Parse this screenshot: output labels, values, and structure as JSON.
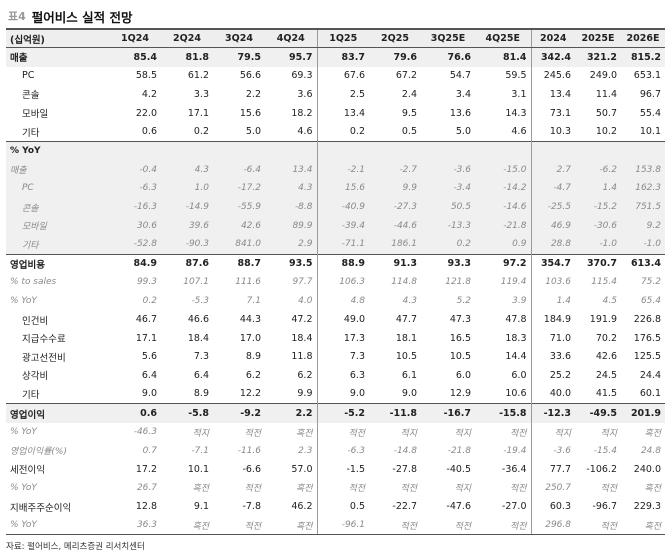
{
  "title": {
    "tag": "표4",
    "text": "펄어비스 실적 전망"
  },
  "header": {
    "unit": "(십억원)",
    "periods": [
      "1Q24",
      "2Q24",
      "3Q24",
      "4Q24",
      "1Q25",
      "2Q25",
      "3Q25E",
      "4Q25E",
      "2024",
      "2025E",
      "2026E"
    ]
  },
  "rows": [
    {
      "label": "매출",
      "style": "sec shade",
      "values": [
        "85.4",
        "81.8",
        "79.5",
        "95.7",
        "83.7",
        "79.6",
        "76.6",
        "81.4",
        "342.4",
        "321.2",
        "815.2"
      ]
    },
    {
      "label": "PC",
      "style": "sub",
      "values": [
        "58.5",
        "61.2",
        "56.6",
        "69.3",
        "67.6",
        "67.2",
        "54.7",
        "59.5",
        "245.6",
        "249.0",
        "653.1"
      ]
    },
    {
      "label": "콘솔",
      "style": "sub",
      "values": [
        "4.2",
        "3.3",
        "2.2",
        "3.6",
        "2.5",
        "2.4",
        "3.4",
        "3.1",
        "13.4",
        "11.4",
        "96.7"
      ]
    },
    {
      "label": "모바일",
      "style": "sub",
      "values": [
        "22.0",
        "17.1",
        "15.6",
        "18.2",
        "13.4",
        "9.5",
        "13.6",
        "14.3",
        "73.1",
        "50.7",
        "55.4"
      ]
    },
    {
      "label": "기타",
      "style": "sub",
      "values": [
        "0.6",
        "0.2",
        "5.0",
        "4.6",
        "0.2",
        "0.5",
        "5.0",
        "4.6",
        "10.3",
        "10.2",
        "10.1"
      ]
    },
    {
      "label": "% YoY",
      "style": "yoyhdr",
      "values": [
        "",
        "",
        "",
        "",
        "",
        "",
        "",
        "",
        "",
        "",
        ""
      ]
    },
    {
      "label": "매출",
      "style": "ital shade",
      "values": [
        "-0.4",
        "4.3",
        "-6.4",
        "13.4",
        "-2.1",
        "-2.7",
        "-3.6",
        "-15.0",
        "2.7",
        "-6.2",
        "153.8"
      ]
    },
    {
      "label": "PC",
      "style": "ital sub shade",
      "values": [
        "-6.3",
        "1.0",
        "-17.2",
        "4.3",
        "15.6",
        "9.9",
        "-3.4",
        "-14.2",
        "-4.7",
        "1.4",
        "162.3"
      ]
    },
    {
      "label": "콘솔",
      "style": "ital sub shade",
      "values": [
        "-16.3",
        "-14.9",
        "-55.9",
        "-8.8",
        "-40.9",
        "-27.3",
        "50.5",
        "-14.6",
        "-25.5",
        "-15.2",
        "751.5"
      ]
    },
    {
      "label": "모바일",
      "style": "ital sub shade",
      "values": [
        "30.6",
        "39.6",
        "42.6",
        "89.9",
        "-39.4",
        "-44.6",
        "-13.3",
        "-21.8",
        "46.9",
        "-30.6",
        "9.2"
      ]
    },
    {
      "label": "기타",
      "style": "ital sub shade",
      "values": [
        "-52.8",
        "-90.3",
        "841.0",
        "2.9",
        "-71.1",
        "186.1",
        "0.2",
        "0.9",
        "28.8",
        "-1.0",
        "-1.0"
      ]
    },
    {
      "label": "영업비용",
      "style": "sec topline",
      "values": [
        "84.9",
        "87.6",
        "88.7",
        "93.5",
        "88.9",
        "91.3",
        "93.3",
        "97.2",
        "354.7",
        "370.7",
        "613.4"
      ]
    },
    {
      "label": "% to sales",
      "style": "ital",
      "values": [
        "99.3",
        "107.1",
        "111.6",
        "97.7",
        "106.3",
        "114.8",
        "121.8",
        "119.4",
        "103.6",
        "115.4",
        "75.2"
      ]
    },
    {
      "label": "% YoY",
      "style": "ital",
      "values": [
        "0.2",
        "-5.3",
        "7.1",
        "4.0",
        "4.8",
        "4.3",
        "5.2",
        "3.9",
        "1.4",
        "4.5",
        "65.4"
      ]
    },
    {
      "label": "인건비",
      "style": "sub",
      "values": [
        "46.7",
        "46.6",
        "44.3",
        "47.2",
        "49.0",
        "47.7",
        "47.3",
        "47.8",
        "184.9",
        "191.9",
        "226.8"
      ]
    },
    {
      "label": "지급수수료",
      "style": "sub",
      "values": [
        "17.1",
        "18.4",
        "17.0",
        "18.4",
        "17.3",
        "18.1",
        "16.5",
        "18.3",
        "71.0",
        "70.2",
        "176.5"
      ]
    },
    {
      "label": "광고선전비",
      "style": "sub",
      "values": [
        "5.6",
        "7.3",
        "8.9",
        "11.8",
        "7.3",
        "10.5",
        "10.5",
        "14.4",
        "33.6",
        "42.6",
        "125.5"
      ]
    },
    {
      "label": "상각비",
      "style": "sub",
      "values": [
        "6.4",
        "6.4",
        "6.2",
        "6.2",
        "6.3",
        "6.1",
        "6.0",
        "6.0",
        "25.2",
        "24.5",
        "24.4"
      ]
    },
    {
      "label": "기타",
      "style": "sub",
      "values": [
        "9.0",
        "8.9",
        "12.2",
        "9.9",
        "9.0",
        "9.0",
        "12.9",
        "10.6",
        "40.0",
        "41.5",
        "60.1"
      ]
    },
    {
      "label": "영업이익",
      "style": "sec shade topline",
      "values": [
        "0.6",
        "-5.8",
        "-9.2",
        "2.2",
        "-5.2",
        "-11.8",
        "-16.7",
        "-15.8",
        "-12.3",
        "-49.5",
        "201.9"
      ]
    },
    {
      "label": "% YoY",
      "style": "ital",
      "values": [
        "-46.3",
        "적지",
        "적전",
        "흑전",
        "적전",
        "적지",
        "적지",
        "적전",
        "적지",
        "적지",
        "흑전"
      ]
    },
    {
      "label": "영업이익률(%)",
      "style": "ital",
      "values": [
        "0.7",
        "-7.1",
        "-11.6",
        "2.3",
        "-6.3",
        "-14.8",
        "-21.8",
        "-19.4",
        "-3.6",
        "-15.4",
        "24.8"
      ]
    },
    {
      "label": "세전이익",
      "style": "",
      "values": [
        "17.2",
        "10.1",
        "-6.6",
        "57.0",
        "-1.5",
        "-27.8",
        "-40.5",
        "-36.4",
        "77.7",
        "-106.2",
        "240.0"
      ]
    },
    {
      "label": "% YoY",
      "style": "ital",
      "values": [
        "26.7",
        "흑전",
        "적전",
        "흑전",
        "적전",
        "적전",
        "적지",
        "적전",
        "250.7",
        "적전",
        "흑전"
      ]
    },
    {
      "label": "지배주주순이익",
      "style": "",
      "values": [
        "12.8",
        "9.1",
        "-7.8",
        "46.2",
        "0.5",
        "-22.7",
        "-47.6",
        "-27.0",
        "60.3",
        "-96.7",
        "229.3"
      ]
    },
    {
      "label": "% YoY",
      "style": "ital last",
      "values": [
        "36.3",
        "흑전",
        "적전",
        "흑전",
        "-96.1",
        "적전",
        "적전",
        "적전",
        "296.8",
        "적전",
        "흑전"
      ]
    }
  ],
  "source": "자료: 펄어비스, 메리츠증권 리서치센터"
}
